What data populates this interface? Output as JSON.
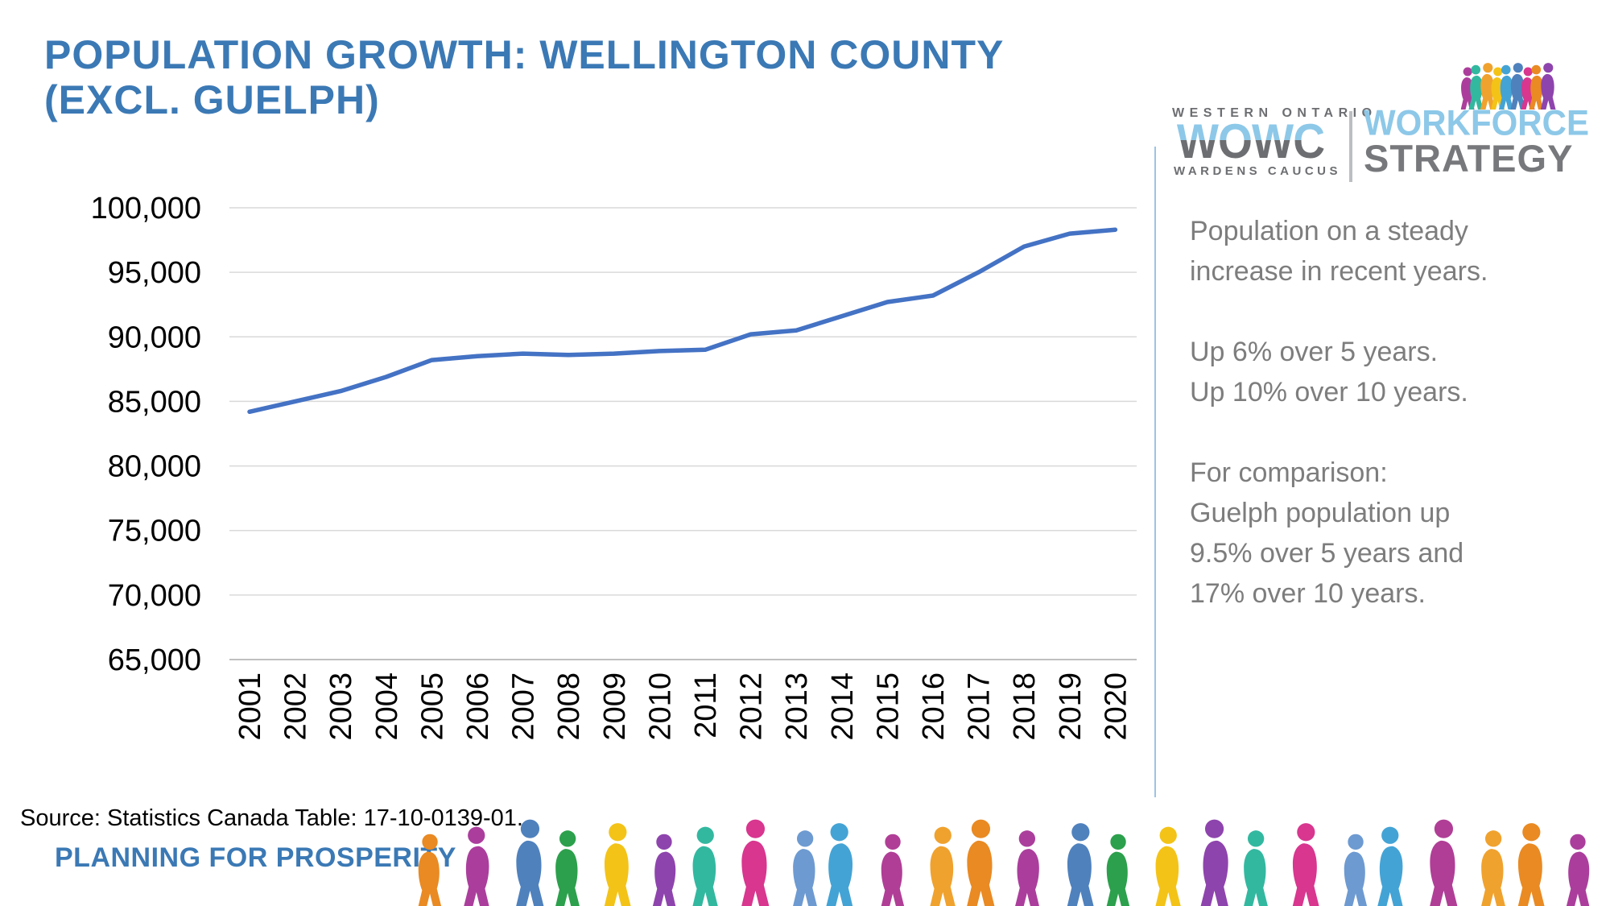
{
  "slide": {
    "title": "POPULATION GROWTH: WELLINGTON COUNTY\n(EXCL. GUELPH)",
    "title_color": "#3b79b5"
  },
  "chart_data": {
    "type": "line",
    "title": "",
    "xlabel": "",
    "ylabel": "",
    "categories": [
      2001,
      2002,
      2003,
      2004,
      2005,
      2006,
      2007,
      2008,
      2009,
      2010,
      2011,
      2012,
      2013,
      2014,
      2015,
      2016,
      2017,
      2018,
      2019,
      2020
    ],
    "series": [
      {
        "name": "Wellington County population (excl. Guelph)",
        "values": [
          84200,
          85000,
          85800,
          86900,
          88200,
          88500,
          88700,
          88600,
          88700,
          88900,
          89000,
          90200,
          90500,
          91600,
          92700,
          93200,
          95000,
          97000,
          98000,
          98300
        ]
      }
    ],
    "ylim": [
      65000,
      100000
    ],
    "ytick_step": 5000,
    "ytick_labels": [
      "65,000",
      "70,000",
      "75,000",
      "80,000",
      "85,000",
      "90,000",
      "95,000",
      "100,000"
    ],
    "grid": true,
    "legend": "none",
    "line_color": "#4472c4",
    "gridline_color": "#d9d9d9",
    "axis_color": "#bfbfbf",
    "tick_label_color": "#000000"
  },
  "logo": {
    "western_ontario": "WESTERN ONTARIO",
    "wowc": "WOWC",
    "wardens_caucus": "WARDENS CAUCUS",
    "workforce": "WORKFORCE",
    "strategy": "STRATEGY",
    "light_blue": "#8dc8e8",
    "gray": "#6d6e71",
    "strategy_gray": "#77787b"
  },
  "sidebar": {
    "text_color": "#7d7d7d",
    "para1": "Population on a steady\nincrease in recent years.",
    "para2": "Up 6% over 5 years.\nUp 10% over 10 years.",
    "para3": "For comparison:\nGuelph population up\n9.5% over 5 years and\n17% over 10 years."
  },
  "footer": {
    "source": "Source: Statistics Canada Table: 17-10-0139-01.",
    "tagline": "PLANNING FOR PROSPERITY",
    "tagline_color": "#3b79b5"
  },
  "decor": {
    "divider_color": "#9cc3e5",
    "people_palette": [
      "#e98a23",
      "#ab3e9c",
      "#4f81bd",
      "#2ca04c",
      "#f3c318",
      "#8e44ad",
      "#33b8a0",
      "#d8368f",
      "#6d9ad1",
      "#44a3d5",
      "#b03e96",
      "#f0a22e"
    ]
  }
}
